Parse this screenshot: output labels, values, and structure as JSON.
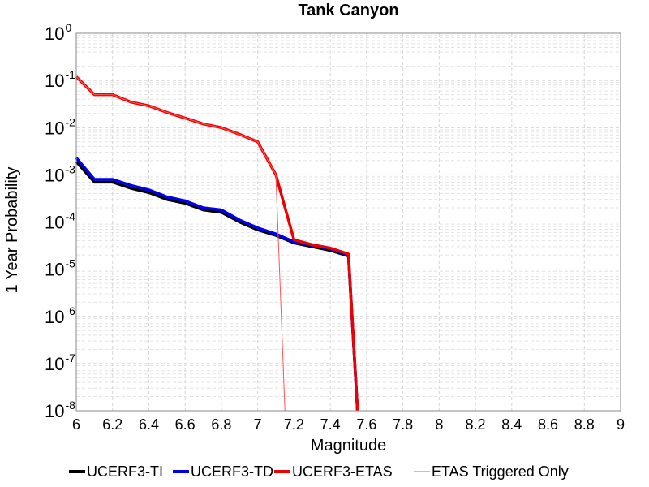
{
  "chart_data": {
    "type": "line",
    "title": "Tank Canyon",
    "xlabel": "Magnitude",
    "ylabel": "1 Year Probability",
    "xlim": [
      6,
      9
    ],
    "ylim": [
      1e-08,
      1
    ],
    "yscale": "log",
    "grid": true,
    "legend_position": "bottom",
    "x_ticks": [
      "6",
      "6.2",
      "6.4",
      "6.6",
      "6.8",
      "7",
      "7.2",
      "7.4",
      "7.6",
      "7.8",
      "8",
      "8.2",
      "8.4",
      "8.6",
      "8.8",
      "9"
    ],
    "y_ticks": [
      {
        "base": "10",
        "exp": "0"
      },
      {
        "base": "10",
        "exp": "-1"
      },
      {
        "base": "10",
        "exp": "-2"
      },
      {
        "base": "10",
        "exp": "-3"
      },
      {
        "base": "10",
        "exp": "-4"
      },
      {
        "base": "10",
        "exp": "-5"
      },
      {
        "base": "10",
        "exp": "-6"
      },
      {
        "base": "10",
        "exp": "-7"
      },
      {
        "base": "10",
        "exp": "-8"
      }
    ],
    "series": [
      {
        "name": "UCERF3-TI",
        "color": "#000000",
        "width": 3.5,
        "x": [
          6.0,
          6.1,
          6.2,
          6.3,
          6.4,
          6.5,
          6.6,
          6.7,
          6.8,
          6.9,
          7.0,
          7.1,
          7.2,
          7.3,
          7.4,
          7.5,
          7.55
        ],
        "y": [
          0.0019,
          0.0007,
          0.0007,
          0.00052,
          0.00042,
          0.0003,
          0.00025,
          0.00018,
          0.00016,
          0.0001,
          6.8e-05,
          5.2e-05,
          3.6e-05,
          3e-05,
          2.5e-05,
          1.9e-05,
          1e-08
        ]
      },
      {
        "name": "UCERF3-TD",
        "color": "#0000ee",
        "width": 3.5,
        "x": [
          6.0,
          6.1,
          6.2,
          6.3,
          6.4,
          6.5,
          6.6,
          6.7,
          6.8,
          6.9,
          7.0,
          7.1,
          7.2,
          7.3,
          7.4,
          7.5,
          7.55
        ],
        "y": [
          0.0023,
          0.0008,
          0.0008,
          0.0006,
          0.00048,
          0.00034,
          0.00028,
          0.0002,
          0.00018,
          0.00011,
          7.5e-05,
          5.6e-05,
          3.8e-05,
          3.2e-05,
          2.7e-05,
          2e-05,
          1e-08
        ]
      },
      {
        "name": "UCERF3-ETAS",
        "color": "#ee0000",
        "width": 3.5,
        "x": [
          6.0,
          6.1,
          6.2,
          6.3,
          6.4,
          6.5,
          6.6,
          6.7,
          6.8,
          6.9,
          7.0,
          7.1,
          7.2,
          7.3,
          7.4,
          7.5,
          7.55
        ],
        "y": [
          0.12,
          0.05,
          0.05,
          0.035,
          0.029,
          0.021,
          0.016,
          0.012,
          0.01,
          0.0072,
          0.005,
          0.001,
          4.2e-05,
          3.3e-05,
          2.8e-05,
          2.1e-05,
          1e-08
        ]
      },
      {
        "name": "ETAS Triggered Only",
        "color": "#ff5555",
        "width": 1,
        "x": [
          6.0,
          6.1,
          6.2,
          6.3,
          6.4,
          6.5,
          6.6,
          6.7,
          6.8,
          6.9,
          7.0,
          7.1,
          7.15
        ],
        "y": [
          0.12,
          0.05,
          0.05,
          0.035,
          0.029,
          0.021,
          0.016,
          0.012,
          0.01,
          0.0072,
          0.005,
          0.001,
          1e-08
        ]
      }
    ]
  }
}
